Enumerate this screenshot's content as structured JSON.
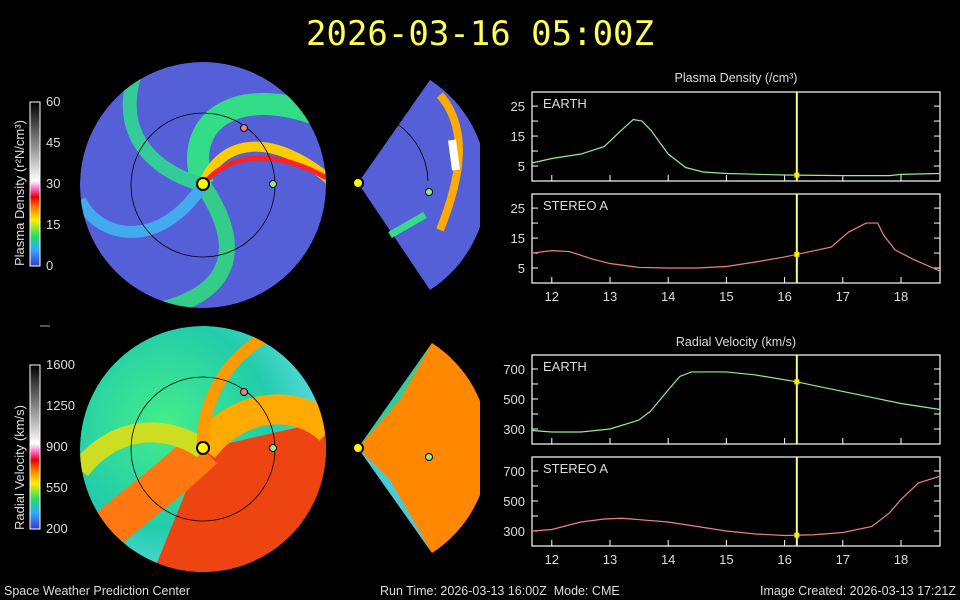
{
  "title": "2026-03-16 05:00Z",
  "footer": {
    "org": "Space Weather Prediction Center",
    "run": "Run Time: 2026-03-13 16:00Z  Mode: CME",
    "created": "Image Created: 2026-03-13 17:21Z"
  },
  "colorbars": [
    {
      "label": "Plasma Density (r²N/cm³)",
      "ticks": [
        "60",
        "45",
        "30",
        "15",
        "0"
      ]
    },
    {
      "label": "Radial Velocity (km/s)",
      "ticks": [
        "1600",
        "1250",
        "900",
        "550",
        "200"
      ]
    }
  ],
  "colors": {
    "earth": "#90ee90",
    "stereo": "#f08080",
    "marker": "#ffff66"
  },
  "chart_data": [
    {
      "type": "line",
      "title": "Plasma Density (/cm³)",
      "current_time": 16.21,
      "xlim": [
        11.66,
        18.67
      ],
      "xticks": [
        12,
        13,
        14,
        15,
        16,
        17,
        18
      ],
      "panels": [
        {
          "name": "EARTH",
          "ylim": [
            0,
            29.7
          ],
          "yticks": [
            5,
            15,
            25
          ],
          "x": [
            11.66,
            12,
            12.5,
            12.9,
            13.2,
            13.4,
            13.55,
            13.7,
            14,
            14.3,
            14.6,
            15,
            16,
            17,
            17.8,
            18,
            18.67
          ],
          "y": [
            6,
            7.5,
            9,
            11.5,
            17,
            20.5,
            20,
            17,
            9,
            4.5,
            3,
            2.5,
            2,
            1.8,
            1.8,
            2.2,
            2.5
          ]
        },
        {
          "name": "STEREO A",
          "ylim": [
            0,
            29.7
          ],
          "yticks": [
            5,
            15,
            25
          ],
          "x": [
            11.66,
            12,
            12.3,
            12.7,
            13,
            13.5,
            14,
            14.5,
            15,
            15.5,
            16,
            16.2,
            16.8,
            17.1,
            17.4,
            17.6,
            17.7,
            17.9,
            18.2,
            18.67
          ],
          "y": [
            10,
            10.8,
            10.5,
            8,
            6.5,
            5.2,
            5,
            5,
            5.5,
            7,
            8.7,
            9.5,
            12,
            17,
            20,
            20,
            16,
            11,
            8,
            4
          ]
        }
      ]
    },
    {
      "type": "line",
      "title": "Radial Velocity (km/s)",
      "current_time": 16.21,
      "xlim": [
        11.66,
        18.67
      ],
      "xticks": [
        12,
        13,
        14,
        15,
        16,
        17,
        18
      ],
      "panels": [
        {
          "name": "EARTH",
          "ylim": [
            200,
            793
          ],
          "yticks": [
            300,
            500,
            700
          ],
          "x": [
            11.66,
            12,
            12.5,
            13,
            13.5,
            13.7,
            14,
            14.2,
            14.4,
            15,
            15.5,
            16.2,
            16.5,
            17,
            17.5,
            18,
            18.67
          ],
          "y": [
            290,
            280,
            280,
            300,
            360,
            420,
            560,
            650,
            680,
            680,
            660,
            615,
            590,
            550,
            510,
            470,
            430
          ]
        },
        {
          "name": "STEREO A",
          "ylim": [
            200,
            793
          ],
          "yticks": [
            300,
            500,
            700
          ],
          "x": [
            11.66,
            12,
            12.5,
            12.9,
            13.2,
            14,
            14.5,
            15,
            15.5,
            16,
            16.5,
            17,
            17.5,
            17.8,
            18,
            18.3,
            18.67
          ],
          "y": [
            300,
            310,
            360,
            380,
            385,
            360,
            330,
            300,
            280,
            270,
            275,
            290,
            330,
            420,
            510,
            620,
            665
          ]
        }
      ]
    }
  ]
}
